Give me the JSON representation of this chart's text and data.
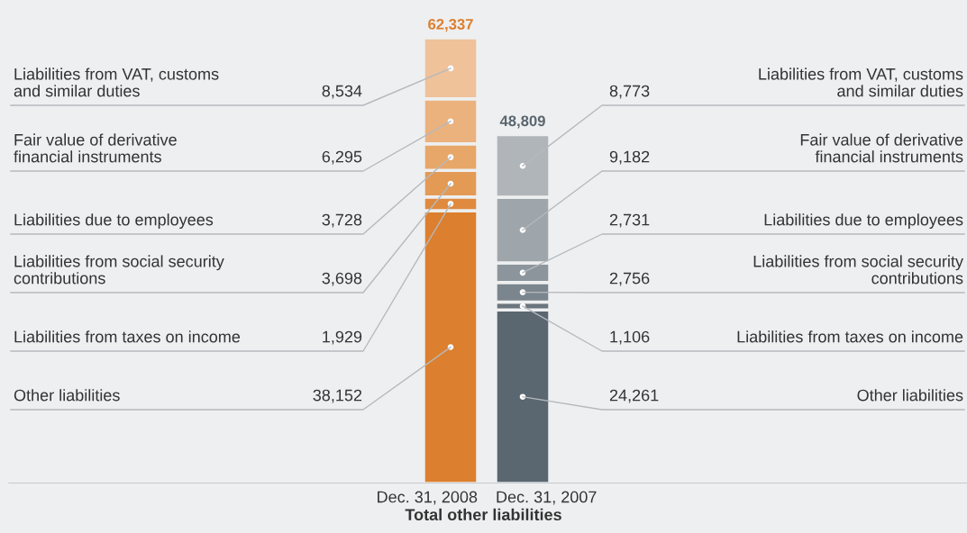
{
  "chart_data": {
    "type": "bar",
    "stacked": true,
    "data_labels": true,
    "xlabel": "Total other liabilities",
    "categories": [
      "Dec. 31, 2008",
      "Dec. 31, 2007"
    ],
    "series": [
      {
        "name": "Other liabilities",
        "colors": [
          "#dc7f2e",
          "#5a6670"
        ],
        "values": [
          38152,
          24261
        ],
        "value_labels": [
          "38,152",
          "24,261"
        ]
      },
      {
        "name": "Liabilities from taxes on income",
        "colors": [
          "#df8a3e",
          "#6b757e"
        ],
        "values": [
          1929,
          1106
        ],
        "value_labels": [
          "1,929",
          "1,106"
        ]
      },
      {
        "name": "Liabilities from social security\ncontributions",
        "colors": [
          "#e39a55",
          "#7b858d"
        ],
        "values": [
          3698,
          2756
        ],
        "value_labels": [
          "3,698",
          "2,756"
        ]
      },
      {
        "name": "Liabilities due to employees",
        "colors": [
          "#e7a769",
          "#8c959c"
        ],
        "values": [
          3728,
          2731
        ],
        "value_labels": [
          "3,728",
          "2,731"
        ]
      },
      {
        "name": "Fair value of derivative\nfinancial instruments",
        "colors": [
          "#ebb27e",
          "#9ea5ab"
        ],
        "values": [
          6295,
          9182
        ],
        "value_labels": [
          "6,295",
          "9,182"
        ]
      },
      {
        "name": "Liabilities from VAT, customs\nand similar duties",
        "colors": [
          "#efc29a",
          "#b0b5ba"
        ],
        "values": [
          8534,
          8773
        ],
        "value_labels": [
          "8,534",
          "8,773"
        ]
      }
    ],
    "totals": [
      "62,337",
      "48,809"
    ]
  }
}
